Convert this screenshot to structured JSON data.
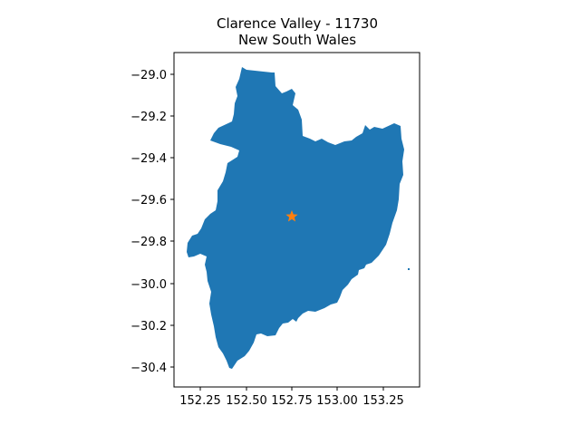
{
  "map": {
    "title_line1": "Clarence Valley - 11730",
    "title_line2": "New South Wales",
    "colors": {
      "region_fill": "#1f77b4",
      "marker_fill": "#ff7f0e",
      "axes": "#000000",
      "background": "#ffffff"
    },
    "x_ticks": [
      "152.25",
      "152.50",
      "152.75",
      "153.00",
      "153.25"
    ],
    "y_ticks": [
      "−29.0",
      "−29.2",
      "−29.4",
      "−29.6",
      "−29.8",
      "−30.0",
      "−30.2",
      "−30.4"
    ],
    "centroid_marker": {
      "icon": "star",
      "lon": 152.75,
      "lat": -29.68
    }
  }
}
